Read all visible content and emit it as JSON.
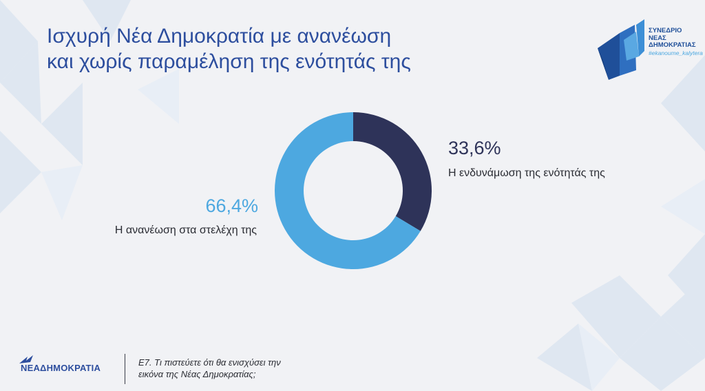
{
  "header": {
    "title_line1": "Ισχυρή Νέα Δημοκρατία με ανανέωση",
    "title_line2": "και χωρίς παραμέληση της ενότητάς της"
  },
  "brand": {
    "line1": "ΣΥΝΕΔΡΙΟ",
    "line2": "ΝΕΑΣ",
    "line3": "ΔΗΜΟΚΡΑΤΙΑΣ",
    "hashtag": "#ekanoume_kalytera"
  },
  "footer": {
    "party_name": "ΝΕΑΔΗΜΟΚΡΑΤΙΑ",
    "question_line1": "Ε7. Τι πιστεύετε ότι θα ενισχύσει την",
    "question_line2": "εικόνα της Νέας Δημοκρατίας;"
  },
  "colors": {
    "title": "#2d4e9e",
    "dark_navy": "#2e3359",
    "light_blue": "#4da8e0",
    "text_dark": "#2a2c33",
    "bg": "#f1f2f5"
  },
  "chart_data": {
    "type": "pie",
    "donut": true,
    "slices": [
      {
        "label": "Η ενδυνάμωση της ενότητάς της",
        "value": 33.6,
        "value_label": "33,6%",
        "color": "#2e3359"
      },
      {
        "label": "Η ανανέωση στα στελέχη της",
        "value": 66.4,
        "value_label": "66,4%",
        "color": "#4da8e0"
      }
    ]
  }
}
